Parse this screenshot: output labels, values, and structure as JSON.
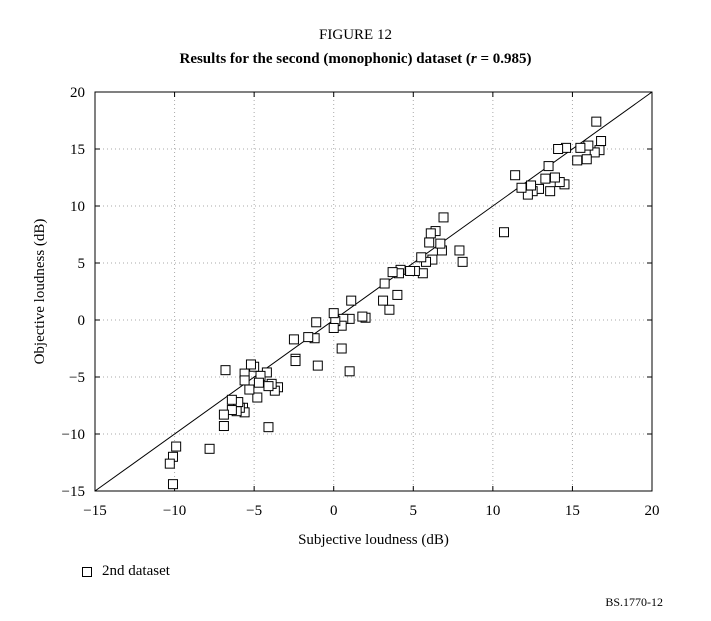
{
  "figure_label": "FIGURE 12",
  "title_prefix": "Results for the second (monophonic) dataset (",
  "title_r": "r",
  "title_suffix": " = 0.985)",
  "reference_code": "BS.1770-12",
  "chart_data": {
    "type": "scatter",
    "xlabel": "Subjective loudness (dB)",
    "ylabel": "Objective loudness (dB)",
    "xlim": [
      -15,
      20
    ],
    "ylim": [
      -15,
      20
    ],
    "xticks": [
      -15,
      -10,
      -5,
      0,
      5,
      10,
      15,
      20
    ],
    "yticks": [
      -15,
      -10,
      -5,
      0,
      5,
      10,
      15,
      20
    ],
    "xtick_labels": [
      "−15",
      "−10",
      "−5",
      "0",
      "5",
      "10",
      "15",
      "20"
    ],
    "ytick_labels": [
      "−15",
      "−10",
      "−5",
      "0",
      "5",
      "10",
      "15",
      "20"
    ],
    "grid": "dotted",
    "reference_line": "y = x",
    "legend": {
      "position": "bottom-left"
    },
    "series": [
      {
        "name": "2nd dataset",
        "marker": "open-square",
        "points": [
          [
            16.5,
            17.4
          ],
          [
            16.8,
            15.7
          ],
          [
            16.7,
            14.9
          ],
          [
            16.4,
            14.7
          ],
          [
            16.0,
            15.3
          ],
          [
            15.9,
            14.1
          ],
          [
            15.5,
            15.1
          ],
          [
            15.3,
            14.0
          ],
          [
            14.6,
            15.1
          ],
          [
            14.1,
            15.0
          ],
          [
            14.5,
            11.9
          ],
          [
            14.2,
            12.1
          ],
          [
            13.9,
            12.5
          ],
          [
            13.6,
            11.3
          ],
          [
            13.3,
            12.4
          ],
          [
            13.5,
            13.5
          ],
          [
            12.9,
            11.5
          ],
          [
            12.5,
            11.3
          ],
          [
            12.2,
            11.0
          ],
          [
            12.4,
            11.8
          ],
          [
            11.8,
            11.6
          ],
          [
            11.4,
            12.7
          ],
          [
            10.7,
            7.7
          ],
          [
            8.1,
            5.1
          ],
          [
            7.9,
            6.1
          ],
          [
            6.9,
            9.0
          ],
          [
            6.8,
            6.1
          ],
          [
            6.7,
            6.7
          ],
          [
            6.4,
            7.8
          ],
          [
            6.2,
            5.3
          ],
          [
            6.1,
            7.6
          ],
          [
            6.0,
            6.8
          ],
          [
            5.8,
            5.1
          ],
          [
            5.6,
            4.1
          ],
          [
            5.5,
            5.5
          ],
          [
            5.1,
            4.3
          ],
          [
            4.8,
            4.3
          ],
          [
            4.2,
            4.4
          ],
          [
            4.1,
            4.1
          ],
          [
            4.0,
            2.2
          ],
          [
            3.7,
            4.2
          ],
          [
            3.5,
            0.9
          ],
          [
            3.2,
            3.2
          ],
          [
            3.1,
            1.7
          ],
          [
            2.0,
            0.2
          ],
          [
            1.8,
            0.3
          ],
          [
            1.1,
            1.7
          ],
          [
            1.0,
            0.1
          ],
          [
            1.0,
            -4.5
          ],
          [
            0.6,
            0.1
          ],
          [
            0.5,
            -0.5
          ],
          [
            0.5,
            -2.5
          ],
          [
            0.1,
            -0.1
          ],
          [
            0.0,
            0.6
          ],
          [
            0.0,
            -0.7
          ],
          [
            -1.1,
            -0.2
          ],
          [
            -1.0,
            -4.0
          ],
          [
            -1.2,
            -1.6
          ],
          [
            -1.6,
            -1.5
          ],
          [
            -2.4,
            -3.4
          ],
          [
            -2.5,
            -1.7
          ],
          [
            -2.4,
            -3.6
          ],
          [
            -3.5,
            -5.9
          ],
          [
            -3.7,
            -6.2
          ],
          [
            -3.9,
            -5.6
          ],
          [
            -4.2,
            -4.6
          ],
          [
            -4.1,
            -5.8
          ],
          [
            -4.1,
            -9.4
          ],
          [
            -4.6,
            -4.9
          ],
          [
            -4.7,
            -5.5
          ],
          [
            -4.8,
            -6.8
          ],
          [
            -5.0,
            -4.1
          ],
          [
            -5.2,
            -3.9
          ],
          [
            -5.3,
            -6.1
          ],
          [
            -5.6,
            -4.7
          ],
          [
            -5.6,
            -5.3
          ],
          [
            -5.7,
            -7.7
          ],
          [
            -5.6,
            -8.1
          ],
          [
            -5.9,
            -7.7
          ],
          [
            -6.0,
            -7.2
          ],
          [
            -6.1,
            -8.0
          ],
          [
            -6.4,
            -7.0
          ],
          [
            -6.4,
            -7.9
          ],
          [
            -6.8,
            -4.4
          ],
          [
            -6.9,
            -8.3
          ],
          [
            -6.9,
            -9.3
          ],
          [
            -7.8,
            -11.3
          ],
          [
            -9.9,
            -11.1
          ],
          [
            -10.1,
            -12.0
          ],
          [
            -10.3,
            -12.6
          ],
          [
            -10.1,
            -14.4
          ]
        ]
      }
    ]
  }
}
